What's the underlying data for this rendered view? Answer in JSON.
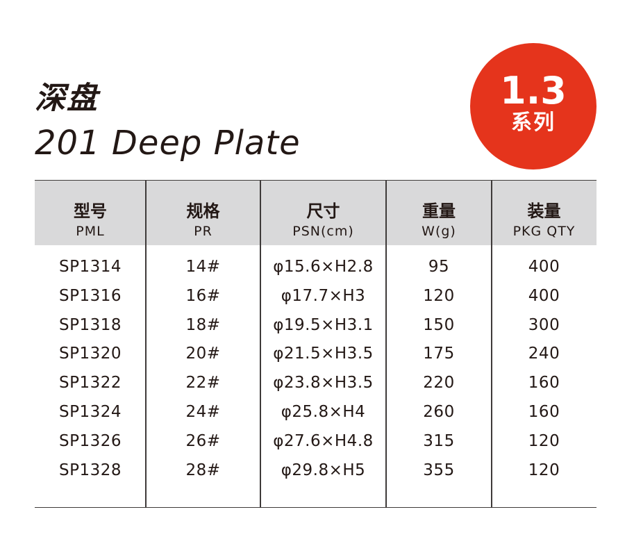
{
  "title": {
    "zh": "深盘",
    "en": "201 Deep Plate"
  },
  "badge": {
    "number": "1.3",
    "label": "系列",
    "color": "#e5341c"
  },
  "table": {
    "header_bg": "#d9d9da",
    "columns": [
      {
        "zh": "型号",
        "en": "PML"
      },
      {
        "zh": "规格",
        "en": "PR"
      },
      {
        "zh": "尺寸",
        "en": "PSN(cm)"
      },
      {
        "zh": "重量",
        "en": "W(g)"
      },
      {
        "zh": "装量",
        "en": "PKG QTY"
      }
    ],
    "rows": [
      [
        "SP1314",
        "14#",
        "φ15.6×H2.8",
        "95",
        "400"
      ],
      [
        "SP1316",
        "16#",
        "φ17.7×H3",
        "120",
        "400"
      ],
      [
        "SP1318",
        "18#",
        "φ19.5×H3.1",
        "150",
        "300"
      ],
      [
        "SP1320",
        "20#",
        "φ21.5×H3.5",
        "175",
        "240"
      ],
      [
        "SP1322",
        "22#",
        "φ23.8×H3.5",
        "220",
        "160"
      ],
      [
        "SP1324",
        "24#",
        "φ25.8×H4",
        "260",
        "160"
      ],
      [
        "SP1326",
        "26#",
        "φ27.6×H4.8",
        "315",
        "120"
      ],
      [
        "SP1328",
        "28#",
        "φ29.8×H5",
        "355",
        "120"
      ]
    ]
  }
}
